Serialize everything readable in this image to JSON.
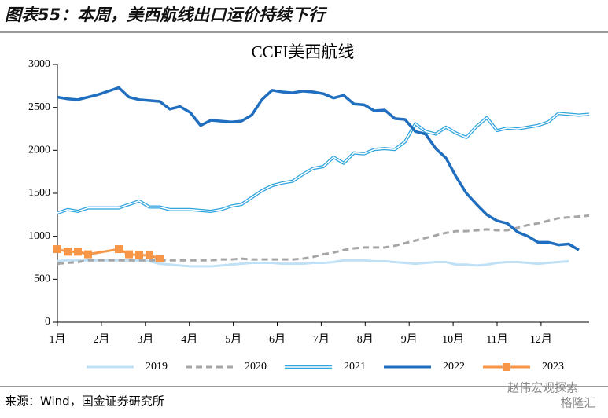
{
  "header": "图表55：本周，美西航线出口运价持续下行",
  "source": "来源：Wind，国金证券研究所",
  "watermark": [
    "赵伟宏观探索",
    "格隆汇"
  ],
  "chart_data": {
    "type": "line",
    "title": "CCFI美西航线",
    "x": [
      0,
      1,
      2,
      3,
      4,
      5,
      6,
      7,
      8,
      9,
      10,
      11,
      12,
      13,
      14,
      15,
      16,
      17,
      18,
      19,
      20,
      21,
      22,
      23,
      24,
      25,
      26,
      27,
      28,
      29,
      30,
      31,
      32,
      33,
      34,
      35,
      36,
      37,
      38,
      39,
      40,
      41,
      42,
      43,
      44,
      45,
      46,
      47,
      48,
      49,
      50,
      51,
      52
    ],
    "xlim": [
      0,
      52
    ],
    "xticks": [
      {
        "value": 0,
        "label": "1月"
      },
      {
        "value": 4.3,
        "label": "2月"
      },
      {
        "value": 8.6,
        "label": "3月"
      },
      {
        "value": 12.9,
        "label": "4月"
      },
      {
        "value": 17.2,
        "label": "5月"
      },
      {
        "value": 21.5,
        "label": "6月"
      },
      {
        "value": 25.8,
        "label": "7月"
      },
      {
        "value": 30.1,
        "label": "8月"
      },
      {
        "value": 34.4,
        "label": "9月"
      },
      {
        "value": 38.7,
        "label": "10月"
      },
      {
        "value": 43,
        "label": "11月"
      },
      {
        "value": 47.3,
        "label": "12月"
      }
    ],
    "ylim": [
      0,
      3000
    ],
    "yticks": [
      0,
      500,
      1000,
      1500,
      2000,
      2500,
      3000
    ],
    "legend": "bottom",
    "series": [
      {
        "name": "2019",
        "color": "#bfe0f5",
        "values": [
          710,
          720,
          720,
          720,
          720,
          720,
          720,
          720,
          720,
          710,
          680,
          670,
          660,
          650,
          650,
          650,
          660,
          670,
          680,
          690,
          690,
          690,
          680,
          680,
          680,
          690,
          690,
          700,
          720,
          720,
          720,
          710,
          710,
          700,
          690,
          680,
          690,
          700,
          700,
          670,
          670,
          660,
          670,
          690,
          700,
          700,
          690,
          680,
          690,
          700,
          710,
          null,
          null
        ]
      },
      {
        "name": "2020",
        "color": "#a6a6a6",
        "style": "dashed",
        "values": [
          680,
          690,
          700,
          720,
          720,
          720,
          720,
          720,
          720,
          720,
          720,
          720,
          720,
          720,
          720,
          720,
          730,
          730,
          740,
          730,
          730,
          730,
          730,
          730,
          740,
          760,
          790,
          810,
          840,
          860,
          870,
          870,
          870,
          890,
          920,
          950,
          980,
          1010,
          1040,
          1060,
          1060,
          1070,
          1080,
          1070,
          1070,
          1100,
          1130,
          1150,
          1180,
          1210,
          1220,
          1230,
          1240
        ]
      },
      {
        "name": "2021",
        "color": "#2ea3dc",
        "style": "double",
        "values": [
          1270,
          1310,
          1290,
          1330,
          1330,
          1330,
          1330,
          1370,
          1410,
          1340,
          1340,
          1310,
          1310,
          1310,
          1300,
          1290,
          1310,
          1350,
          1370,
          1450,
          1530,
          1590,
          1620,
          1640,
          1720,
          1790,
          1810,
          1920,
          1850,
          1970,
          1960,
          2010,
          2020,
          2010,
          2100,
          2310,
          2220,
          2190,
          2270,
          2200,
          2150,
          2280,
          2380,
          2230,
          2260,
          2250,
          2270,
          2290,
          2330,
          2430,
          2420,
          2410,
          2420
        ]
      },
      {
        "name": "2022",
        "color": "#1f6ebf",
        "values": [
          2620,
          2600,
          2590,
          2620,
          2650,
          2690,
          2730,
          2620,
          2590,
          2580,
          2570,
          2480,
          2510,
          2440,
          2290,
          2350,
          2340,
          2330,
          2340,
          2410,
          2590,
          2700,
          2680,
          2670,
          2690,
          2680,
          2660,
          2610,
          2640,
          2540,
          2530,
          2460,
          2470,
          2370,
          2360,
          2220,
          2190,
          2020,
          1910,
          1690,
          1500,
          1370,
          1250,
          1180,
          1150,
          1050,
          1000,
          930,
          930,
          900,
          910,
          840,
          null
        ]
      },
      {
        "name": "2023",
        "color": "#f79646",
        "marker": "square",
        "x": [
          0,
          1,
          2,
          3,
          6,
          7,
          8,
          9,
          10
        ],
        "values": [
          850,
          820,
          820,
          790,
          850,
          790,
          780,
          780,
          740
        ]
      }
    ]
  }
}
